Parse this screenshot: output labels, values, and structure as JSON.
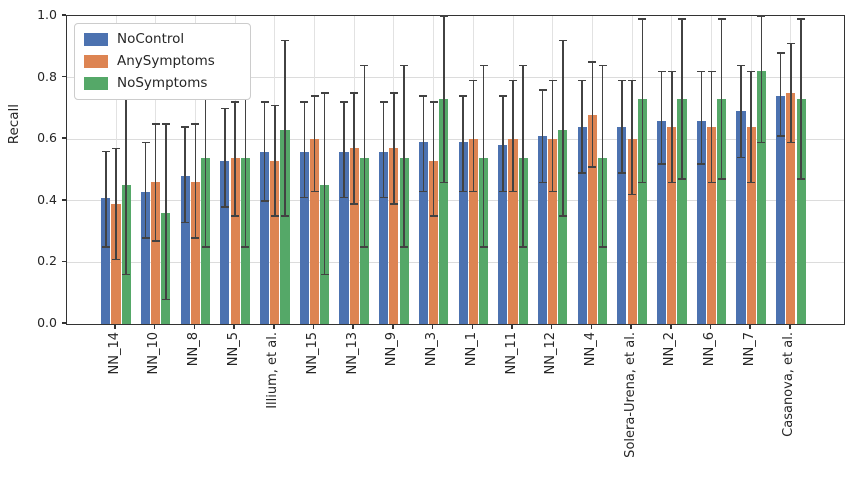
{
  "figure": {
    "background": "#ffffff",
    "text_color": "#262626",
    "grid_color": "#dcdcdc",
    "spine_color": "#333333",
    "errorbar_color": "#424242"
  },
  "legend": {
    "position": "upper left",
    "items": [
      {
        "label": "NoControl",
        "color": "#4C72B0"
      },
      {
        "label": "AnySymptoms",
        "color": "#DD8452"
      },
      {
        "label": "NoSymptoms",
        "color": "#55A868"
      }
    ]
  },
  "chart_data": {
    "type": "bar",
    "title": "",
    "xlabel": "",
    "ylabel": "Recall",
    "ylim": [
      0.0,
      1.0
    ],
    "yticks": [
      0.0,
      0.2,
      0.4,
      0.6,
      0.8,
      1.0
    ],
    "grid": true,
    "error_bars": true,
    "legend_position": "upper left",
    "categories": [
      "NN_14",
      "NN_10",
      "NN_8",
      "NN_5",
      "Illium, et al.",
      "NN_15",
      "NN_13",
      "NN_9",
      "NN_3",
      "NN_1",
      "NN_11",
      "NN_12",
      "NN_4",
      "Solera-Urena, et al.",
      "NN_2",
      "NN_6",
      "NN_7",
      "Casanova, et al."
    ],
    "series": [
      {
        "name": "NoControl",
        "color": "#4C72B0",
        "values": [
          0.41,
          0.43,
          0.48,
          0.53,
          0.56,
          0.56,
          0.56,
          0.56,
          0.59,
          0.59,
          0.58,
          0.61,
          0.64,
          0.64,
          0.66,
          0.66,
          0.69,
          0.74
        ],
        "err_low": [
          0.25,
          0.28,
          0.33,
          0.38,
          0.4,
          0.41,
          0.41,
          0.41,
          0.43,
          0.43,
          0.43,
          0.46,
          0.49,
          0.49,
          0.52,
          0.52,
          0.54,
          0.61
        ],
        "err_high": [
          0.56,
          0.59,
          0.64,
          0.7,
          0.72,
          0.72,
          0.72,
          0.72,
          0.74,
          0.74,
          0.74,
          0.76,
          0.79,
          0.79,
          0.82,
          0.82,
          0.84,
          0.88
        ]
      },
      {
        "name": "AnySymptoms",
        "color": "#DD8452",
        "values": [
          0.39,
          0.46,
          0.46,
          0.54,
          0.53,
          0.6,
          0.57,
          0.57,
          0.53,
          0.6,
          0.6,
          0.6,
          0.68,
          0.6,
          0.64,
          0.64,
          0.64,
          0.75
        ],
        "err_low": [
          0.21,
          0.27,
          0.28,
          0.35,
          0.35,
          0.43,
          0.39,
          0.39,
          0.35,
          0.43,
          0.43,
          0.43,
          0.51,
          0.42,
          0.46,
          0.46,
          0.46,
          0.59
        ],
        "err_high": [
          0.57,
          0.65,
          0.65,
          0.72,
          0.71,
          0.74,
          0.75,
          0.75,
          0.72,
          0.79,
          0.79,
          0.79,
          0.85,
          0.79,
          0.82,
          0.82,
          0.82,
          0.91
        ]
      },
      {
        "name": "NoSymptoms",
        "color": "#55A868",
        "values": [
          0.45,
          0.36,
          0.54,
          0.54,
          0.63,
          0.45,
          0.54,
          0.54,
          0.73,
          0.54,
          0.54,
          0.63,
          0.54,
          0.73,
          0.73,
          0.73,
          0.82,
          0.73
        ],
        "err_low": [
          0.16,
          0.08,
          0.25,
          0.25,
          0.35,
          0.16,
          0.25,
          0.25,
          0.46,
          0.25,
          0.25,
          0.35,
          0.25,
          0.46,
          0.47,
          0.47,
          0.59,
          0.47
        ],
        "err_high": [
          0.75,
          0.65,
          0.74,
          0.84,
          0.92,
          0.75,
          0.84,
          0.84,
          1.0,
          0.84,
          0.84,
          0.92,
          0.84,
          0.99,
          0.99,
          0.99,
          1.0,
          0.99
        ]
      }
    ]
  }
}
